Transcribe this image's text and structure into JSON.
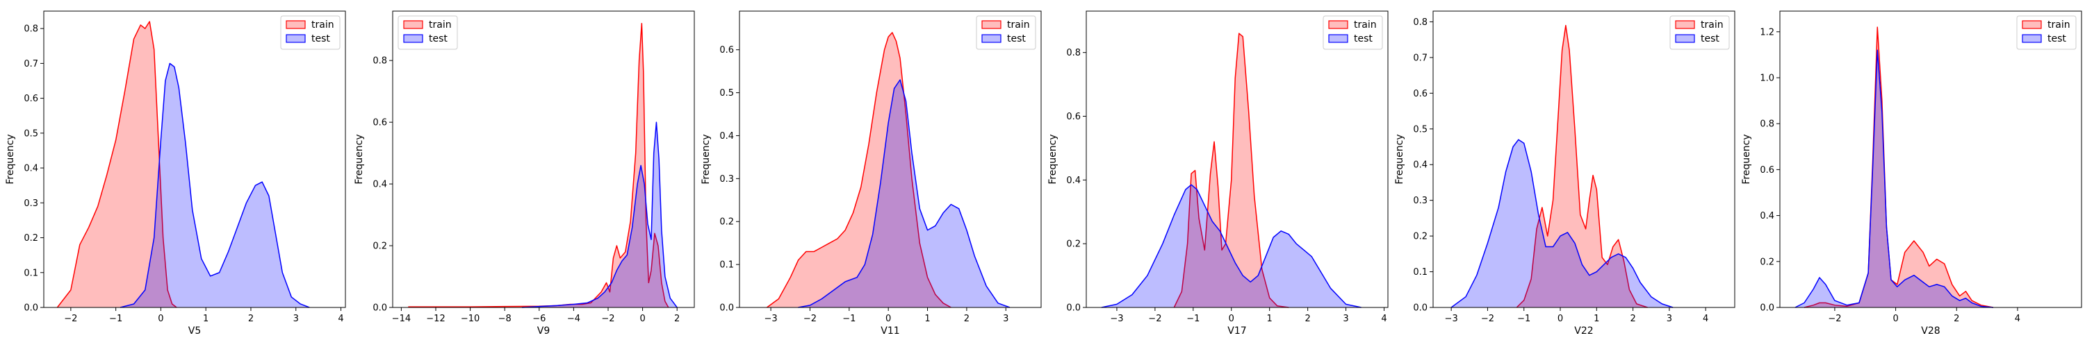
{
  "chart_data": [
    {
      "type": "area",
      "xlabel": "V5",
      "ylabel": "Frequency",
      "xlim": [
        -2.6,
        4.1
      ],
      "ylim": [
        0,
        0.85
      ],
      "xticks": [
        -2,
        -1,
        0,
        1,
        2,
        3,
        4
      ],
      "yticks": [
        0.0,
        0.1,
        0.2,
        0.3,
        0.4,
        0.5,
        0.6,
        0.7,
        0.8
      ],
      "legend": "top-right",
      "series": [
        {
          "name": "train",
          "color": "#ff0000",
          "x": [
            -2.3,
            -2.0,
            -1.8,
            -1.6,
            -1.4,
            -1.2,
            -1.0,
            -0.8,
            -0.6,
            -0.45,
            -0.35,
            -0.25,
            -0.15,
            -0.05,
            0.05,
            0.15,
            0.25,
            0.35
          ],
          "y": [
            0.0,
            0.05,
            0.18,
            0.23,
            0.29,
            0.38,
            0.48,
            0.62,
            0.77,
            0.81,
            0.8,
            0.82,
            0.74,
            0.47,
            0.2,
            0.05,
            0.01,
            0.0
          ]
        },
        {
          "name": "test",
          "color": "#0000ff",
          "x": [
            -0.9,
            -0.6,
            -0.35,
            -0.15,
            0.0,
            0.1,
            0.2,
            0.3,
            0.4,
            0.55,
            0.7,
            0.9,
            1.1,
            1.3,
            1.5,
            1.7,
            1.9,
            2.1,
            2.25,
            2.4,
            2.55,
            2.7,
            2.9,
            3.1,
            3.3
          ],
          "y": [
            0.0,
            0.01,
            0.05,
            0.2,
            0.48,
            0.65,
            0.7,
            0.69,
            0.63,
            0.47,
            0.28,
            0.14,
            0.09,
            0.1,
            0.16,
            0.23,
            0.3,
            0.35,
            0.36,
            0.32,
            0.21,
            0.1,
            0.03,
            0.01,
            0.0
          ]
        }
      ]
    },
    {
      "type": "area",
      "xlabel": "V9",
      "ylabel": "Frequency",
      "xlim": [
        -14.5,
        3.0
      ],
      "ylim": [
        0,
        0.96
      ],
      "xticks": [
        -14,
        -12,
        -10,
        -8,
        -6,
        -4,
        -2,
        0,
        2
      ],
      "yticks": [
        0.0,
        0.2,
        0.4,
        0.6,
        0.8
      ],
      "legend": "top-left",
      "series": [
        {
          "name": "train",
          "color": "#ff0000",
          "x": [
            -13.6,
            -12.0,
            -10.0,
            -8.0,
            -6.0,
            -5.0,
            -4.2,
            -3.5,
            -3.0,
            -2.4,
            -2.1,
            -1.9,
            -1.7,
            -1.5,
            -1.3,
            -1.0,
            -0.7,
            -0.4,
            -0.2,
            -0.05,
            0.05,
            0.2,
            0.35,
            0.5,
            0.7,
            0.9,
            1.1,
            1.3,
            1.5
          ],
          "y": [
            0.002,
            0.002,
            0.002,
            0.003,
            0.004,
            0.006,
            0.01,
            0.01,
            0.015,
            0.05,
            0.08,
            0.05,
            0.16,
            0.2,
            0.16,
            0.18,
            0.28,
            0.5,
            0.8,
            0.92,
            0.76,
            0.28,
            0.08,
            0.12,
            0.24,
            0.2,
            0.08,
            0.02,
            0.0
          ]
        },
        {
          "name": "test",
          "color": "#0000ff",
          "x": [
            -7.0,
            -6.0,
            -5.0,
            -4.0,
            -3.2,
            -2.6,
            -2.2,
            -1.8,
            -1.5,
            -1.2,
            -0.9,
            -0.6,
            -0.3,
            -0.1,
            0.1,
            0.3,
            0.5,
            0.65,
            0.8,
            0.95,
            1.1,
            1.3,
            1.6,
            2.0
          ],
          "y": [
            0.0,
            0.003,
            0.006,
            0.01,
            0.015,
            0.03,
            0.05,
            0.08,
            0.12,
            0.15,
            0.17,
            0.26,
            0.4,
            0.46,
            0.4,
            0.27,
            0.22,
            0.5,
            0.6,
            0.48,
            0.25,
            0.1,
            0.03,
            0.0
          ]
        }
      ]
    },
    {
      "type": "area",
      "xlabel": "V11",
      "ylabel": "Frequency",
      "xlim": [
        -3.8,
        3.9
      ],
      "ylim": [
        0,
        0.69
      ],
      "xticks": [
        -3,
        -2,
        -1,
        0,
        1,
        2,
        3
      ],
      "yticks": [
        0.0,
        0.1,
        0.2,
        0.3,
        0.4,
        0.5,
        0.6
      ],
      "legend": "top-right",
      "series": [
        {
          "name": "train",
          "color": "#ff0000",
          "x": [
            -3.1,
            -2.8,
            -2.5,
            -2.3,
            -2.1,
            -1.9,
            -1.7,
            -1.5,
            -1.3,
            -1.1,
            -0.9,
            -0.7,
            -0.5,
            -0.3,
            -0.1,
            0.0,
            0.1,
            0.2,
            0.3,
            0.45,
            0.6,
            0.8,
            1.0,
            1.2,
            1.4,
            1.6
          ],
          "y": [
            0.0,
            0.02,
            0.07,
            0.11,
            0.13,
            0.13,
            0.14,
            0.15,
            0.16,
            0.18,
            0.22,
            0.28,
            0.38,
            0.5,
            0.6,
            0.63,
            0.64,
            0.62,
            0.58,
            0.45,
            0.3,
            0.15,
            0.07,
            0.03,
            0.01,
            0.0
          ]
        },
        {
          "name": "test",
          "color": "#0000ff",
          "x": [
            -2.3,
            -2.0,
            -1.7,
            -1.4,
            -1.1,
            -0.8,
            -0.6,
            -0.4,
            -0.2,
            0.0,
            0.15,
            0.3,
            0.45,
            0.6,
            0.8,
            1.0,
            1.2,
            1.4,
            1.6,
            1.8,
            2.0,
            2.2,
            2.5,
            2.8,
            3.1
          ],
          "y": [
            0.0,
            0.005,
            0.02,
            0.04,
            0.06,
            0.07,
            0.1,
            0.17,
            0.29,
            0.43,
            0.51,
            0.53,
            0.48,
            0.36,
            0.23,
            0.18,
            0.19,
            0.22,
            0.24,
            0.23,
            0.18,
            0.12,
            0.05,
            0.01,
            0.0
          ]
        }
      ]
    },
    {
      "type": "area",
      "xlabel": "V17",
      "ylabel": "Frequency",
      "xlim": [
        -3.8,
        4.1
      ],
      "ylim": [
        0,
        0.93
      ],
      "xticks": [
        -3,
        -2,
        -1,
        0,
        1,
        2,
        3,
        4
      ],
      "yticks": [
        0.0,
        0.2,
        0.4,
        0.6,
        0.8
      ],
      "legend": "top-right",
      "series": [
        {
          "name": "train",
          "color": "#ff0000",
          "x": [
            -1.5,
            -1.3,
            -1.15,
            -1.05,
            -0.95,
            -0.85,
            -0.7,
            -0.55,
            -0.45,
            -0.35,
            -0.25,
            -0.15,
            0.0,
            0.1,
            0.2,
            0.3,
            0.45,
            0.6,
            0.8,
            1.0,
            1.2,
            1.5
          ],
          "y": [
            0.0,
            0.05,
            0.2,
            0.42,
            0.43,
            0.28,
            0.18,
            0.42,
            0.52,
            0.38,
            0.18,
            0.2,
            0.4,
            0.72,
            0.86,
            0.85,
            0.62,
            0.35,
            0.12,
            0.03,
            0.005,
            0.0
          ]
        },
        {
          "name": "test",
          "color": "#0000ff",
          "x": [
            -3.4,
            -3.0,
            -2.6,
            -2.2,
            -1.8,
            -1.5,
            -1.2,
            -1.05,
            -0.9,
            -0.7,
            -0.5,
            -0.3,
            -0.1,
            0.1,
            0.3,
            0.5,
            0.7,
            0.9,
            1.1,
            1.3,
            1.5,
            1.7,
            1.9,
            2.1,
            2.3,
            2.6,
            3.0,
            3.4
          ],
          "y": [
            0.0,
            0.01,
            0.04,
            0.1,
            0.2,
            0.29,
            0.37,
            0.385,
            0.37,
            0.32,
            0.27,
            0.24,
            0.19,
            0.14,
            0.1,
            0.08,
            0.1,
            0.16,
            0.22,
            0.24,
            0.23,
            0.2,
            0.18,
            0.16,
            0.12,
            0.06,
            0.01,
            0.0
          ]
        }
      ]
    },
    {
      "type": "area",
      "xlabel": "V22",
      "ylabel": "Frequency",
      "xlim": [
        -3.5,
        4.8
      ],
      "ylim": [
        0,
        0.83
      ],
      "xticks": [
        -3,
        -2,
        -1,
        0,
        1,
        2,
        3,
        4
      ],
      "yticks": [
        0.0,
        0.1,
        0.2,
        0.3,
        0.4,
        0.5,
        0.6,
        0.7,
        0.8
      ],
      "legend": "top-right",
      "series": [
        {
          "name": "train",
          "color": "#ff0000",
          "x": [
            -1.2,
            -1.0,
            -0.8,
            -0.65,
            -0.5,
            -0.35,
            -0.2,
            -0.05,
            0.05,
            0.15,
            0.25,
            0.4,
            0.55,
            0.7,
            0.8,
            0.9,
            1.0,
            1.15,
            1.3,
            1.45,
            1.6,
            1.75,
            1.9,
            2.1,
            2.4
          ],
          "y": [
            0.0,
            0.02,
            0.08,
            0.22,
            0.28,
            0.2,
            0.3,
            0.55,
            0.72,
            0.79,
            0.72,
            0.5,
            0.26,
            0.22,
            0.3,
            0.37,
            0.33,
            0.14,
            0.12,
            0.17,
            0.19,
            0.13,
            0.05,
            0.01,
            0.0
          ]
        },
        {
          "name": "test",
          "color": "#0000ff",
          "x": [
            -3.0,
            -2.6,
            -2.3,
            -2.0,
            -1.7,
            -1.5,
            -1.3,
            -1.15,
            -1.0,
            -0.8,
            -0.6,
            -0.4,
            -0.2,
            0.0,
            0.2,
            0.4,
            0.6,
            0.8,
            1.0,
            1.2,
            1.4,
            1.6,
            1.8,
            2.0,
            2.2,
            2.5,
            2.8,
            3.1
          ],
          "y": [
            0.0,
            0.03,
            0.09,
            0.18,
            0.28,
            0.38,
            0.45,
            0.47,
            0.46,
            0.38,
            0.26,
            0.17,
            0.17,
            0.2,
            0.21,
            0.18,
            0.12,
            0.09,
            0.1,
            0.12,
            0.14,
            0.15,
            0.14,
            0.11,
            0.07,
            0.03,
            0.01,
            0.0
          ]
        }
      ]
    },
    {
      "type": "area",
      "xlabel": "V28",
      "ylabel": "Frequency",
      "xlim": [
        -3.8,
        6.1
      ],
      "ylim": [
        0,
        1.29
      ],
      "xticks": [
        -2,
        0,
        2,
        4
      ],
      "yticks": [
        0.0,
        0.2,
        0.4,
        0.6,
        0.8,
        1.0,
        1.2
      ],
      "legend": "top-right",
      "series": [
        {
          "name": "train",
          "color": "#ff0000",
          "x": [
            -3.0,
            -2.7,
            -2.5,
            -2.3,
            -2.0,
            -1.6,
            -1.2,
            -0.9,
            -0.75,
            -0.6,
            -0.45,
            -0.3,
            -0.15,
            0.05,
            0.3,
            0.6,
            0.9,
            1.1,
            1.35,
            1.6,
            1.85,
            2.1,
            2.3,
            2.5,
            2.8,
            3.2
          ],
          "y": [
            0.0,
            0.01,
            0.02,
            0.02,
            0.01,
            0.005,
            0.02,
            0.15,
            0.65,
            1.22,
            0.9,
            0.35,
            0.12,
            0.1,
            0.24,
            0.29,
            0.24,
            0.18,
            0.21,
            0.19,
            0.1,
            0.05,
            0.07,
            0.03,
            0.01,
            0.0
          ]
        },
        {
          "name": "test",
          "color": "#0000ff",
          "x": [
            -3.3,
            -3.0,
            -2.7,
            -2.5,
            -2.3,
            -2.0,
            -1.6,
            -1.2,
            -0.9,
            -0.75,
            -0.6,
            -0.45,
            -0.3,
            -0.15,
            0.05,
            0.3,
            0.6,
            0.9,
            1.1,
            1.35,
            1.6,
            1.85,
            2.1,
            2.3,
            2.5,
            2.8,
            3.2
          ],
          "y": [
            0.0,
            0.02,
            0.08,
            0.13,
            0.1,
            0.03,
            0.01,
            0.02,
            0.15,
            0.62,
            1.12,
            0.85,
            0.35,
            0.12,
            0.09,
            0.12,
            0.14,
            0.11,
            0.09,
            0.1,
            0.09,
            0.05,
            0.03,
            0.04,
            0.02,
            0.005,
            0.0
          ]
        }
      ]
    }
  ]
}
